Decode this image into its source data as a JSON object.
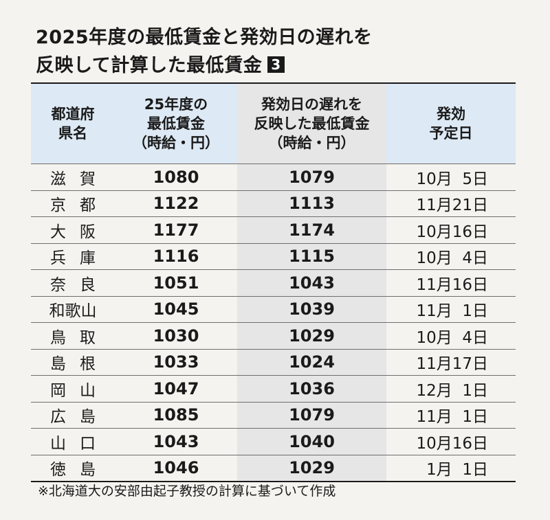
{
  "title": {
    "line1": "2025年度の最低賃金と発効日の遅れを",
    "line2": "反映して計算した最低賃金",
    "badge": "3"
  },
  "table": {
    "headers": [
      "都道府\n県名",
      "25年度の\n最低賃金\n（時給・円）",
      "発効日の遅れを\n反映した最低賃金\n（時給・円）",
      "発効\n予定日"
    ],
    "rows": [
      {
        "pref": "滋賀",
        "wage": "1080",
        "adjusted": "1079",
        "date": "10月  5日"
      },
      {
        "pref": "京都",
        "wage": "1122",
        "adjusted": "1113",
        "date": "11月21日"
      },
      {
        "pref": "大阪",
        "wage": "1177",
        "adjusted": "1174",
        "date": "10月16日"
      },
      {
        "pref": "兵庫",
        "wage": "1116",
        "adjusted": "1115",
        "date": "10月  4日"
      },
      {
        "pref": "奈良",
        "wage": "1051",
        "adjusted": "1043",
        "date": "11月16日"
      },
      {
        "pref": "和歌山",
        "wage": "1045",
        "adjusted": "1039",
        "date": "11月  1日"
      },
      {
        "pref": "鳥取",
        "wage": "1030",
        "adjusted": "1029",
        "date": "10月  4日"
      },
      {
        "pref": "島根",
        "wage": "1033",
        "adjusted": "1024",
        "date": "11月17日"
      },
      {
        "pref": "岡山",
        "wage": "1047",
        "adjusted": "1036",
        "date": "12月  1日"
      },
      {
        "pref": "広島",
        "wage": "1085",
        "adjusted": "1079",
        "date": "11月  1日"
      },
      {
        "pref": "山口",
        "wage": "1043",
        "adjusted": "1040",
        "date": "10月16日"
      },
      {
        "pref": "徳島",
        "wage": "1046",
        "adjusted": "1029",
        "date": "1月  1日"
      }
    ]
  },
  "footnote": "※北海道大の安部由起子教授の計算に基づいて作成"
}
